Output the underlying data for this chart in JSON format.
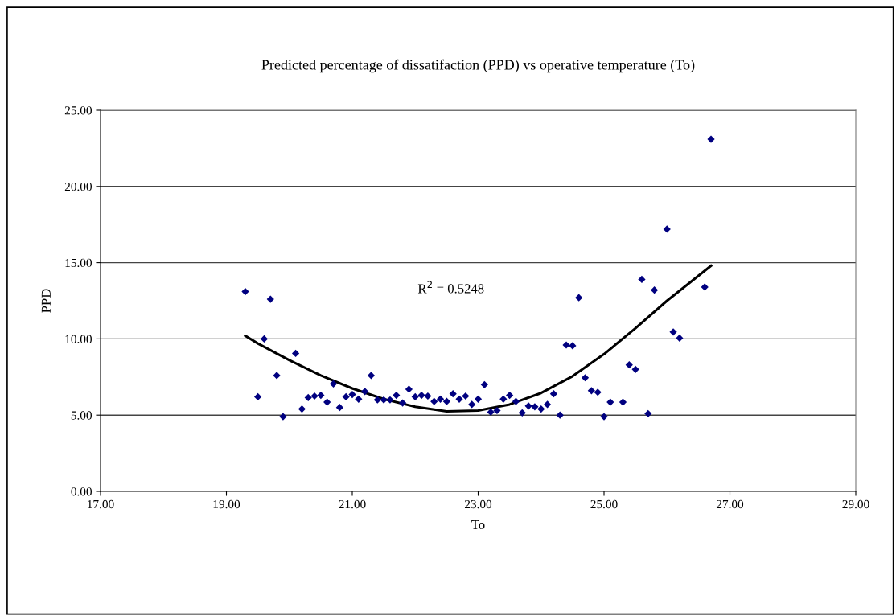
{
  "chart_data": {
    "type": "scatter",
    "title": "Predicted percentage of dissatifaction (PPD) vs operative temperature (To)",
    "xlabel": "To",
    "ylabel": "PPD",
    "annotations": [
      "R$^{2}$ = 0.5248"
    ],
    "xlim": [
      17,
      29
    ],
    "ylim": [
      0,
      25
    ],
    "xticks": [
      {
        "value": 17,
        "label": "17.00"
      },
      {
        "value": 19,
        "label": "19.00"
      },
      {
        "value": 21,
        "label": "21.00"
      },
      {
        "value": 23,
        "label": "23.00"
      },
      {
        "value": 25,
        "label": "25.00"
      },
      {
        "value": 27,
        "label": "27.00"
      },
      {
        "value": 29,
        "label": "29.00"
      }
    ],
    "yticks": [
      {
        "value": 0,
        "label": "0.00"
      },
      {
        "value": 5,
        "label": "5.00"
      },
      {
        "value": 10,
        "label": "10.00"
      },
      {
        "value": 15,
        "label": "15.00"
      },
      {
        "value": 20,
        "label": "20.00"
      },
      {
        "value": 25,
        "label": "25.00"
      }
    ],
    "grid": "y",
    "legend": false,
    "series": [
      {
        "color": "#000080",
        "marker": "diamond",
        "x": [
          19.3,
          19.5,
          19.6,
          19.7,
          19.8,
          19.9,
          20.1,
          20.2,
          20.3,
          20.4,
          20.5,
          20.6,
          20.7,
          20.8,
          20.9,
          21.0,
          21.1,
          21.2,
          21.3,
          21.4,
          21.5,
          21.6,
          21.7,
          21.8,
          21.9,
          22.0,
          22.1,
          22.2,
          22.3,
          22.4,
          22.5,
          22.6,
          22.7,
          22.8,
          22.9,
          23.0,
          23.1,
          23.2,
          23.3,
          23.4,
          23.5,
          23.6,
          23.7,
          23.8,
          23.9,
          24.0,
          24.1,
          24.2,
          24.3,
          24.4,
          24.5,
          24.6,
          24.7,
          24.8,
          24.9,
          25.0,
          25.1,
          25.3,
          25.4,
          25.5,
          25.6,
          25.7,
          25.8,
          26.0,
          26.1,
          26.2,
          26.6,
          26.7
        ],
        "values": [
          13.1,
          6.2,
          10.0,
          12.6,
          7.6,
          4.9,
          9.05,
          5.4,
          6.15,
          6.25,
          6.3,
          5.85,
          7.05,
          5.5,
          6.2,
          6.35,
          6.05,
          6.55,
          7.6,
          6.0,
          6.0,
          6.0,
          6.3,
          5.8,
          6.7,
          6.2,
          6.3,
          6.25,
          5.9,
          6.05,
          5.9,
          6.4,
          6.05,
          6.25,
          5.7,
          6.05,
          7.0,
          5.2,
          5.3,
          6.05,
          6.3,
          5.9,
          5.15,
          5.6,
          5.55,
          5.4,
          5.7,
          6.4,
          5.0,
          9.6,
          9.55,
          12.7,
          7.45,
          6.6,
          6.5,
          4.9,
          5.85,
          5.85,
          8.3,
          8.0,
          13.9,
          5.1,
          13.2,
          17.2,
          10.45,
          10.05,
          13.4,
          23.1
        ]
      },
      {
        "type": "line",
        "color": "#000000",
        "marker": "none",
        "line_style": "solid",
        "x": [
          19.3,
          19.5,
          20,
          20.5,
          21,
          21.5,
          22,
          22.5,
          23,
          23.5,
          24,
          24.5,
          25,
          25.5,
          26,
          26.7
        ],
        "values": [
          10.2,
          9.7,
          8.6,
          7.6,
          6.75,
          6.05,
          5.55,
          5.25,
          5.3,
          5.7,
          6.45,
          7.55,
          9.0,
          10.7,
          12.5,
          14.8
        ]
      }
    ]
  }
}
